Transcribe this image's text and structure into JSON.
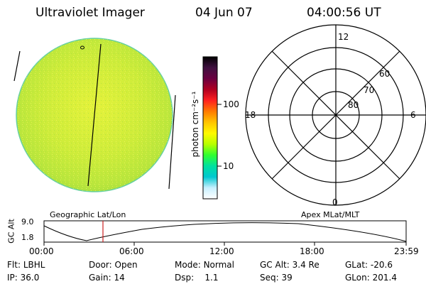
{
  "header": {
    "title": "Ultraviolet Imager",
    "date": "04 Jun 07",
    "time": "04:00:56 UT"
  },
  "colorbar": {
    "unit_label": "photon cm⁻²s⁻¹",
    "ticks": [
      "100",
      "10"
    ],
    "colors": [
      "#000000",
      "#401040",
      "#6a0040",
      "#b00020",
      "#ff2020",
      "#ff7a00",
      "#ffc400",
      "#fffa00",
      "#b8ff00",
      "#30ff30",
      "#00e0a0",
      "#00c8d0",
      "#c8f0ff",
      "#ffffff"
    ]
  },
  "polar": {
    "mlt_labels": {
      "top": "12",
      "left": "18",
      "right": "6",
      "bottom": "0"
    },
    "lat_labels": [
      "60",
      "70",
      "80"
    ]
  },
  "timeline": {
    "y_axis_label": "GC Alt",
    "y_ticks": [
      "9.0",
      "1.8"
    ],
    "left_caption": "Geographic Lat/Lon",
    "right_caption": "Apex MLat/MLT",
    "x_ticks": [
      "00:00",
      "06:00",
      "12:00",
      "18:00",
      "23:59"
    ],
    "current_time_marker_color": "#cc2020"
  },
  "footer": {
    "row1": [
      {
        "label": "Flt:",
        "value": "LBHL"
      },
      {
        "label": "Door:",
        "value": "Open"
      },
      {
        "label": "Mode:",
        "value": "Normal"
      },
      {
        "label": "GC Alt:",
        "value": "3.4 Re"
      },
      {
        "label": "GLat:",
        "value": "-20.6"
      }
    ],
    "row2": [
      {
        "label": "IP:",
        "value": "36.0"
      },
      {
        "label": "Gain:",
        "value": "14"
      },
      {
        "label": "Dsp:",
        "value": "1.1"
      },
      {
        "label": "Seq:",
        "value": "39"
      },
      {
        "label": "GLon:",
        "value": "201.4"
      }
    ]
  }
}
